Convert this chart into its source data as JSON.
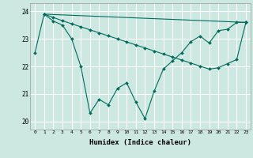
{
  "xlabel": "Humidex (Indice chaleur)",
  "background_color": "#cce8e0",
  "grid_color": "#ffffff",
  "line_color": "#006b5e",
  "xlim": [
    -0.5,
    23.5
  ],
  "ylim": [
    19.7,
    24.3
  ],
  "yticks": [
    20,
    21,
    22,
    23,
    24
  ],
  "xticks": [
    0,
    1,
    2,
    3,
    4,
    5,
    6,
    7,
    8,
    9,
    10,
    11,
    12,
    13,
    14,
    15,
    16,
    17,
    18,
    19,
    20,
    21,
    22,
    23
  ],
  "series1_x": [
    0,
    1,
    2,
    3,
    4,
    5,
    6,
    7,
    8,
    9,
    10,
    11,
    12,
    13,
    14,
    15,
    16,
    17,
    18,
    19,
    20,
    21,
    22,
    23
  ],
  "series1_y": [
    22.5,
    23.9,
    23.65,
    23.5,
    23.0,
    22.0,
    20.3,
    20.8,
    20.6,
    21.2,
    21.4,
    20.7,
    20.1,
    21.1,
    21.9,
    22.2,
    22.5,
    22.9,
    23.1,
    22.85,
    23.3,
    23.35,
    23.6,
    23.6
  ],
  "series2_x": [
    1,
    23
  ],
  "series2_y": [
    23.9,
    23.6
  ],
  "series3_x": [
    1,
    2,
    3,
    4,
    5,
    6,
    7,
    8,
    9,
    10,
    11,
    12,
    13,
    14,
    15,
    16,
    17,
    18,
    19,
    20,
    21,
    22,
    23
  ],
  "series3_y": [
    23.9,
    23.78,
    23.66,
    23.55,
    23.44,
    23.33,
    23.22,
    23.11,
    23.0,
    22.89,
    22.78,
    22.67,
    22.56,
    22.45,
    22.34,
    22.23,
    22.12,
    22.01,
    21.9,
    21.95,
    22.1,
    22.25,
    23.6
  ]
}
